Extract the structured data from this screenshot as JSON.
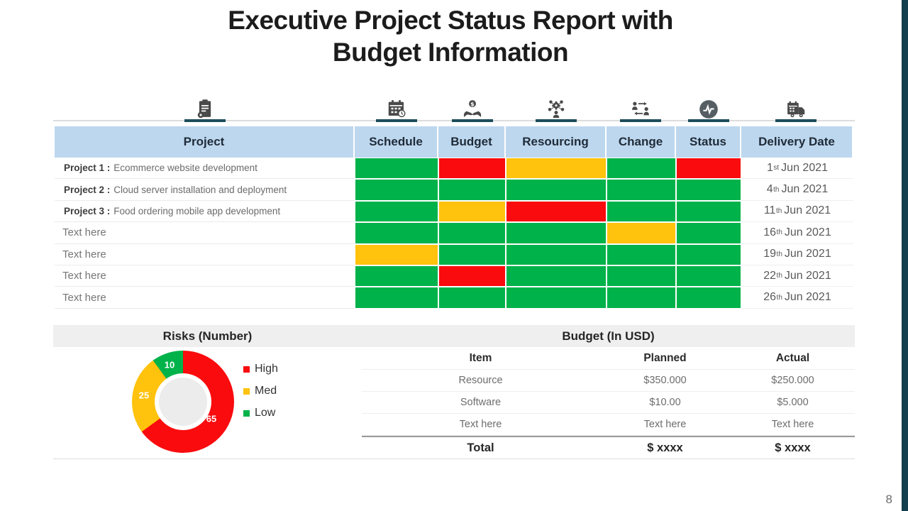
{
  "title": {
    "line1": "Executive Project Status Report with",
    "line2": "Budget Information"
  },
  "colors": {
    "green": "#00B24A",
    "red": "#F90B0E",
    "yellow": "#FFC20D",
    "header_blue": "#BDD7EE",
    "teal_underline": "#1C4D5B",
    "edge_bar": "#133F4E",
    "icon_gray": "#4A4A4A",
    "section_bar_gray": "#EFEFEF"
  },
  "status_table": {
    "columns": [
      "Project",
      "Schedule",
      "Budget",
      "Resourcing",
      "Change",
      "Status",
      "Delivery Date"
    ],
    "icons": [
      "clipboard-gear-icon",
      "calendar-clock-icon",
      "hands-money-icon",
      "resourcing-gears-icon",
      "change-people-arrows-icon",
      "status-pulse-icon",
      "delivery-truck-icon"
    ],
    "rows": [
      {
        "label": "Project 1 :",
        "desc": "Ecommerce website development",
        "statuses": [
          "green",
          "red",
          "yellow",
          "green",
          "red"
        ],
        "delivery": {
          "day": "1",
          "ordinal": "st",
          "rest": "Jun 2021"
        }
      },
      {
        "label": "Project 2 :",
        "desc": "Cloud server installation and deployment",
        "statuses": [
          "green",
          "green",
          "green",
          "green",
          "green"
        ],
        "delivery": {
          "day": "4",
          "ordinal": "th",
          "rest": "Jun 2021"
        }
      },
      {
        "label": "Project 3 :",
        "desc": "Food ordering mobile app development",
        "statuses": [
          "green",
          "yellow",
          "red",
          "green",
          "green"
        ],
        "delivery": {
          "day": "11",
          "ordinal": "th",
          "rest": "Jun 2021"
        }
      },
      {
        "label": "",
        "desc": "Text here",
        "statuses": [
          "green",
          "green",
          "green",
          "yellow",
          "green"
        ],
        "delivery": {
          "day": "16",
          "ordinal": "th",
          "rest": "Jun 2021"
        }
      },
      {
        "label": "",
        "desc": "Text here",
        "statuses": [
          "yellow",
          "green",
          "green",
          "green",
          "green"
        ],
        "delivery": {
          "day": "19",
          "ordinal": "th",
          "rest": "Jun 2021"
        }
      },
      {
        "label": "",
        "desc": "Text here",
        "statuses": [
          "green",
          "red",
          "green",
          "green",
          "green"
        ],
        "delivery": {
          "day": "22",
          "ordinal": "th",
          "rest": "Jun 2021"
        }
      },
      {
        "label": "",
        "desc": "Text here",
        "statuses": [
          "green",
          "green",
          "green",
          "green",
          "green"
        ],
        "delivery": {
          "day": "26",
          "ordinal": "th",
          "rest": "Jun 2021"
        }
      }
    ]
  },
  "lower_section": {
    "risks_title": "Risks (Number)",
    "budget_title": "Budget (In USD)"
  },
  "chart_data": {
    "type": "pie",
    "subtype": "donut",
    "title": "Risks (Number)",
    "labels": [
      "High",
      "Med",
      "Low"
    ],
    "values": [
      65,
      25,
      10
    ],
    "colors": [
      "#F90B0E",
      "#FFC20D",
      "#00B24A"
    ],
    "start_angle_deg": 0,
    "direction": "clockwise",
    "legend_position": "right",
    "data_labels_shown": true
  },
  "budget": {
    "columns": [
      "Item",
      "Planned",
      "Actual"
    ],
    "rows": [
      [
        "Resource",
        "$350.000",
        "$250.000"
      ],
      [
        "Software",
        "$10.00",
        "$5.000"
      ],
      [
        "Text here",
        "Text here",
        "Text here"
      ]
    ],
    "total": [
      "Total",
      "$ xxxx",
      "$ xxxx"
    ]
  },
  "page_number": "8"
}
